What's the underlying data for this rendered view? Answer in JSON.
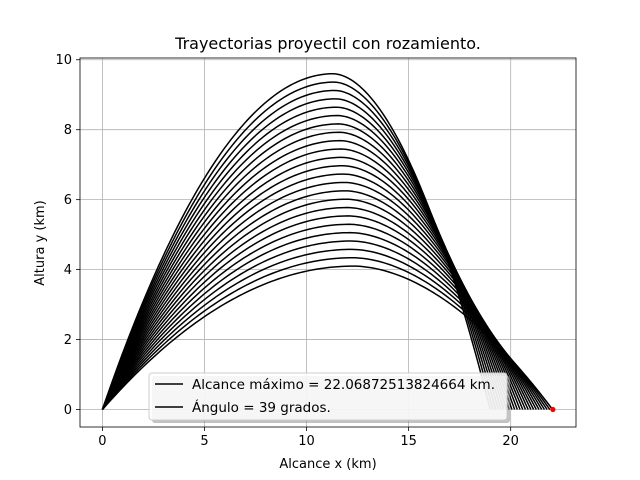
{
  "chart_data": {
    "type": "line",
    "title": "Trayectorias proyectil con rozamiento.",
    "xlabel": "Alcance x (km)",
    "ylabel": "Altura y (km)",
    "xlim": [
      -1.1,
      23.2
    ],
    "ylim": [
      -0.5,
      10.05
    ],
    "xticks": [
      0,
      5,
      10,
      15,
      20
    ],
    "yticks": [
      0,
      2,
      4,
      6,
      8,
      10
    ],
    "grid": true,
    "line_color": "#000000",
    "marker_color": "#ff0000",
    "series_params": {
      "count": 24,
      "apex_x_first": 12.3,
      "apex_x_last": 11.3,
      "apex_y_first": 4.1,
      "apex_y_last": 9.6,
      "range_first": 22.05,
      "range_last": 19.0
    },
    "max_point": {
      "x": 22.06872513824664,
      "y": 0
    },
    "legend": {
      "location": "lower center",
      "entries": [
        "Alcance máximo = 22.06872513824664 km.",
        "Ángulo = 39 grados."
      ]
    }
  }
}
